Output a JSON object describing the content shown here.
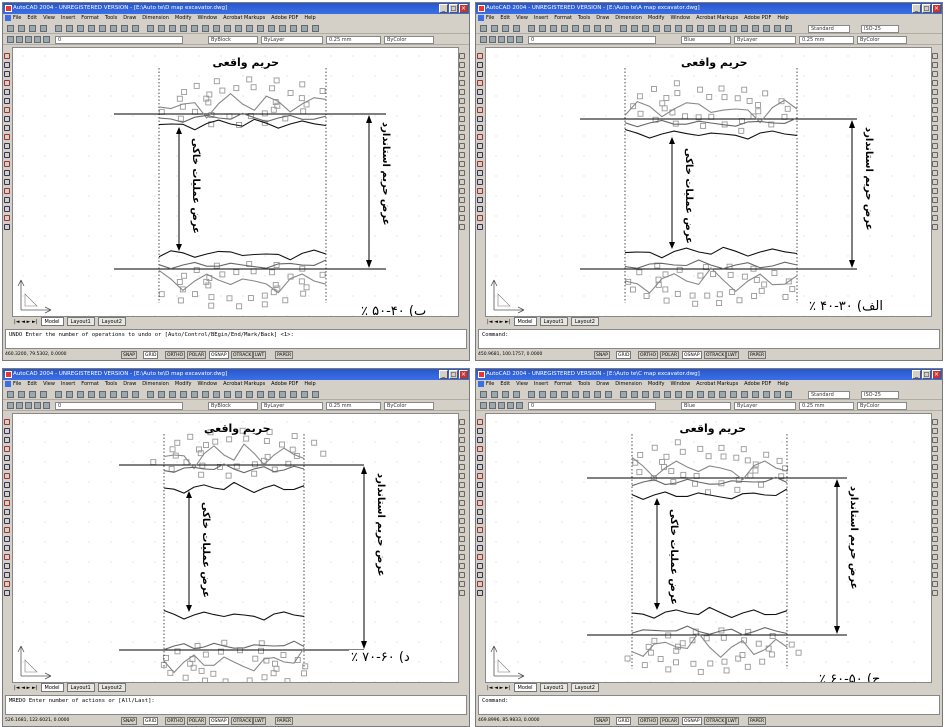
{
  "windows": [
    {
      "title": "AutoCAD 2004 - UNREGISTERED VERSION - [E:\\Auto te\\D map excavator.dwg]",
      "menu": [
        "File",
        "Edit",
        "View",
        "Insert",
        "Format",
        "Tools",
        "Draw",
        "Dimension",
        "Modify",
        "Window",
        "Acrobat Markups",
        "Adobe PDF",
        "Help"
      ],
      "layer_combo": "0",
      "color_combo": "ByBlock",
      "linetype_combo": "ByLayer",
      "lineweight_combo": "0.25 mm",
      "plotstyle_combo": "ByColor",
      "style_combo": "",
      "dimstyle_combo": "",
      "tabs": [
        "Model",
        "Layout1",
        "Layout2"
      ],
      "command_lines": [
        "UNDO Enter the number of operations to undo or [Auto/Control/BEgin/End/Mark/Back] <1>:"
      ],
      "coords": "460.3200, 79.5302, 0.0000",
      "status_buttons": [
        "SNAP",
        "GRID",
        "ORTHO",
        "POLAR",
        "OSNAP",
        "OTRACK",
        "LWT",
        "PAPER"
      ],
      "labels": {
        "top": "حریم واقعی",
        "vert1": "عرض عملیات خاکی",
        "vert2": "عرض حریم استاندارد",
        "caption": "ب) ۴۰-۵۰ ٪"
      }
    },
    {
      "title": "AutoCAD 2004 - UNREGISTERED VERSION - [E:\\Auto te\\A map excavator.dwg]",
      "menu": [
        "File",
        "Edit",
        "View",
        "Insert",
        "Format",
        "Tools",
        "Draw",
        "Dimension",
        "Modify",
        "Window",
        "Acrobat Markups",
        "Adobe PDF",
        "Help"
      ],
      "layer_combo": "0",
      "color_combo": "Blue",
      "linetype_combo": "ByLayer",
      "lineweight_combo": "0.25 mm",
      "plotstyle_combo": "ByColor",
      "style_combo": "Standard",
      "dimstyle_combo": "ISO-25",
      "tabs": [
        "Model",
        "Layout1",
        "Layout2"
      ],
      "command_lines": [
        "Command:"
      ],
      "coords": "450.9681, 100.1757, 0.0000",
      "status_buttons": [
        "SNAP",
        "GRID",
        "ORTHO",
        "POLAR",
        "OSNAP",
        "OTRACK",
        "LWT",
        "PAPER"
      ],
      "labels": {
        "top": "حریم واقعی",
        "vert1": "عرض عملیات خاکی",
        "vert2": "عرض حریم استاندارد",
        "caption": "الف) ۳۰-۴۰ ٪"
      }
    },
    {
      "title": "AutoCAD 2004 - UNREGISTERED VERSION - [E:\\Auto te\\D map excavator.dwg]",
      "menu": [
        "File",
        "Edit",
        "View",
        "Insert",
        "Format",
        "Tools",
        "Draw",
        "Dimension",
        "Modify",
        "Window",
        "Acrobat Markups",
        "Adobe PDF",
        "Help"
      ],
      "layer_combo": "0",
      "color_combo": "ByBlock",
      "linetype_combo": "ByLayer",
      "lineweight_combo": "0.25 mm",
      "plotstyle_combo": "ByColor",
      "style_combo": "",
      "dimstyle_combo": "",
      "tabs": [
        "Model",
        "Layout1",
        "Layout2"
      ],
      "command_lines": [
        "MREDO Enter number of actions or [All/Last]:"
      ],
      "coords": "526.1681, 122.6021, 0.0000",
      "status_buttons": [
        "SNAP",
        "GRID",
        "ORTHO",
        "POLAR",
        "OSNAP",
        "OTRACK",
        "LWT",
        "PAPER"
      ],
      "labels": {
        "top": "حریم واقعی",
        "vert1": "عرض عملیات خاکی",
        "vert2": "عرض حریم استاندارد",
        "caption": "د) ۶۰-۷۰ ٪"
      }
    },
    {
      "title": "AutoCAD 2004 - UNREGISTERED VERSION - [E:\\Auto te\\C map excavator.dwg]",
      "menu": [
        "File",
        "Edit",
        "View",
        "Insert",
        "Format",
        "Tools",
        "Draw",
        "Dimension",
        "Modify",
        "Window",
        "Acrobat Markups",
        "Adobe PDF",
        "Help"
      ],
      "layer_combo": "0",
      "color_combo": "Blue",
      "linetype_combo": "ByLayer",
      "lineweight_combo": "0.25 mm",
      "plotstyle_combo": "ByColor",
      "style_combo": "Standard",
      "dimstyle_combo": "ISO-25",
      "tabs": [
        "Model",
        "Layout1",
        "Layout2"
      ],
      "command_lines": [
        "Command:"
      ],
      "coords": "469.8996, 85.9833, 0.0000",
      "status_buttons": [
        "SNAP",
        "GRID",
        "ORTHO",
        "POLAR",
        "OSNAP",
        "OTRACK",
        "LWT",
        "PAPER"
      ],
      "labels": {
        "top": "حریم واقعی",
        "vert1": "عرض عملیات خاکی",
        "vert2": "عرض حریم استاندارد",
        "caption": "ج) ۵۰-۶۰ ٪"
      }
    }
  ]
}
